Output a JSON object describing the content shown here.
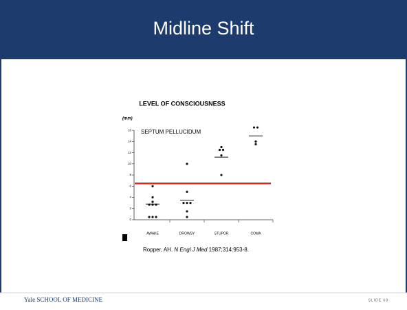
{
  "slide": {
    "title": "Midline Shift",
    "citation": {
      "author": "Ropper, AH.",
      "journal": "N Engl J Med",
      "ref": "1987;314:953-8."
    },
    "footer": "Yale SCHOOL OF MEDICINE",
    "slide_number": "SLIDE 68"
  },
  "chart_data": {
    "type": "dot",
    "title": "LEVEL OF CONSCIOUSNESS",
    "y_label": "(mm)",
    "annotation": "SEPTUM PELLUCIDUM",
    "categories": [
      "AWAKE",
      "DROWSY",
      "STUPOR",
      "COMA"
    ],
    "values": [
      [
        6,
        4,
        3.2,
        2.7,
        2.7,
        2.7,
        0.5,
        0.5,
        0.5
      ],
      [
        10,
        5,
        3,
        3,
        3,
        1.5,
        0.5
      ],
      [
        13,
        12.5,
        12.5,
        11.5,
        8
      ],
      [
        16.5,
        16.5,
        14,
        13.5
      ]
    ],
    "means": [
      2.8,
      3.5,
      11.2,
      15
    ],
    "reference_line": 6.5,
    "reference_color": "#e0261f",
    "color": "#111111",
    "ylim": [
      0,
      17
    ],
    "yticks": [
      0,
      2,
      4,
      6,
      8,
      10,
      12,
      14,
      16
    ]
  }
}
